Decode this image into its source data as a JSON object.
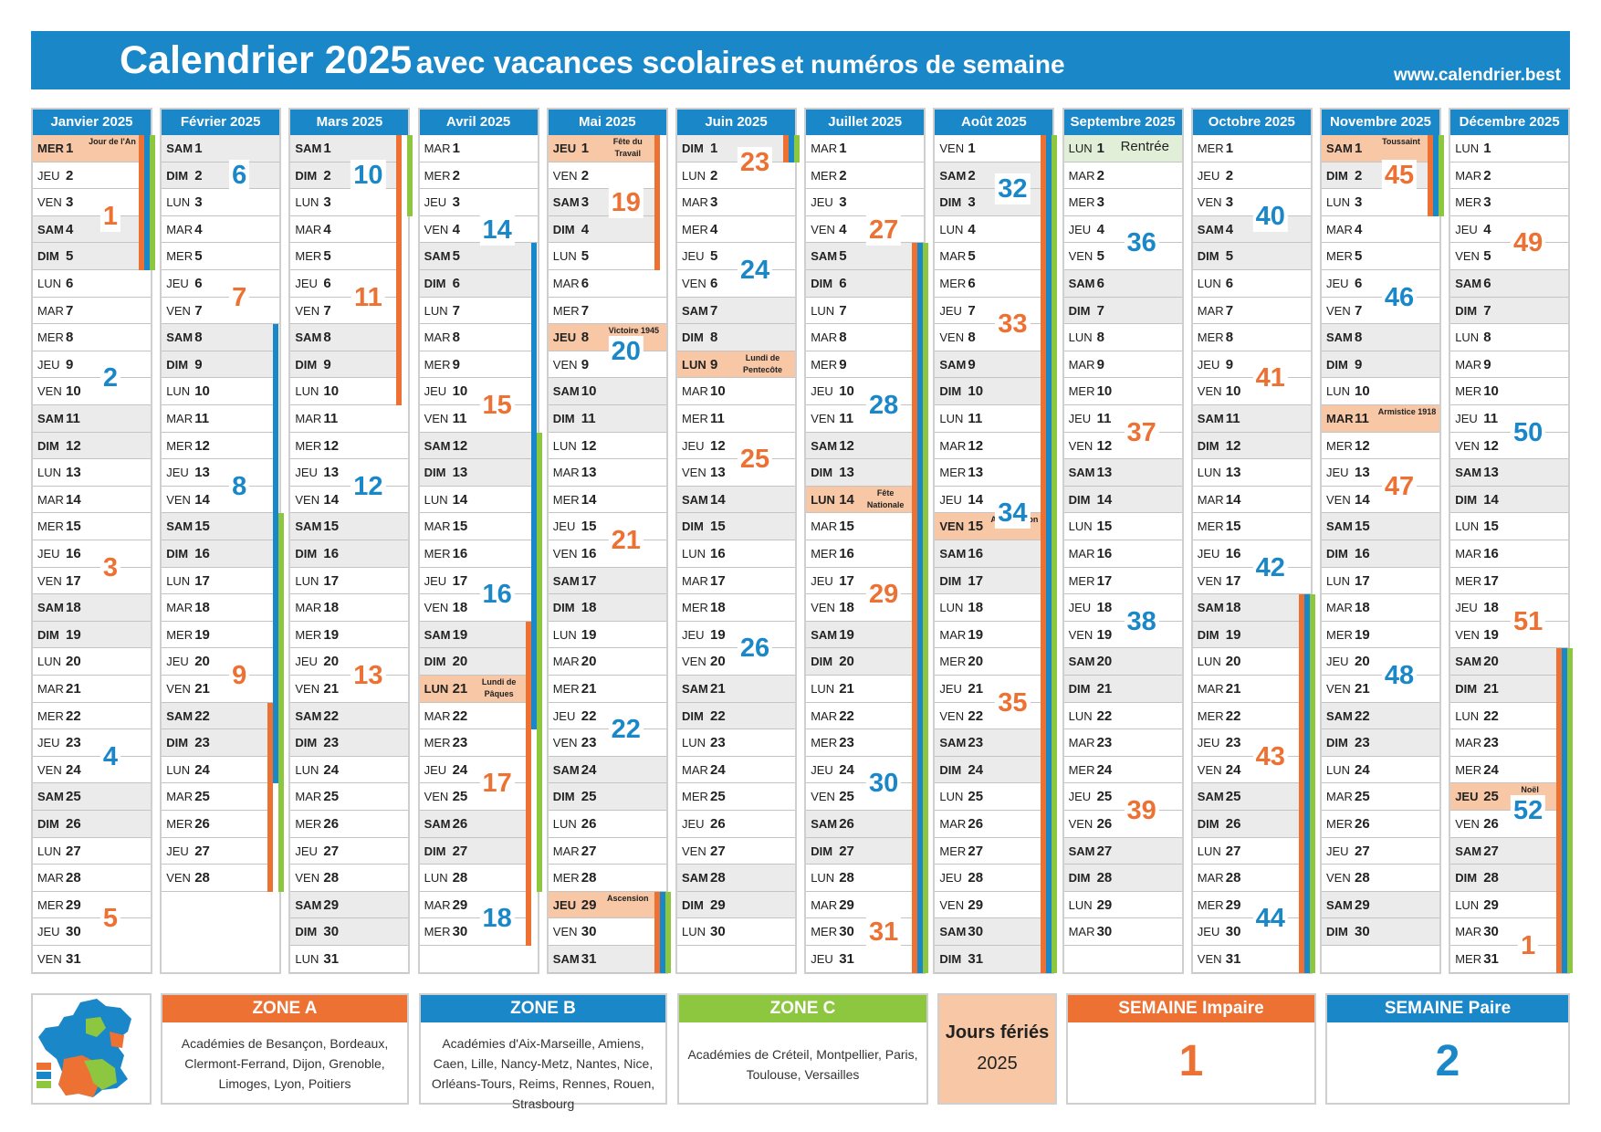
{
  "title": {
    "part1": "Calendrier 2025",
    "part2": "avec vacances scolaires",
    "part3": "et numéros de semaine",
    "website": "www.calendrier.best"
  },
  "colors": {
    "zone_a": "#ed7133",
    "zone_b": "#1a87c9",
    "zone_c": "#8dc63f",
    "holiday": "#f7c7a6",
    "weekend": "#ebebeb",
    "rentree": "#e2efd8"
  },
  "weekday_abbr": [
    "LUN",
    "MAR",
    "MER",
    "JEU",
    "VEN",
    "SAM",
    "DIM"
  ],
  "months": [
    {
      "name": "Janvier 2025",
      "days": 31,
      "start_weekday": 2
    },
    {
      "name": "Février 2025",
      "days": 28,
      "start_weekday": 5
    },
    {
      "name": "Mars 2025",
      "days": 31,
      "start_weekday": 5
    },
    {
      "name": "Avril 2025",
      "days": 30,
      "start_weekday": 1
    },
    {
      "name": "Mai 2025",
      "days": 31,
      "start_weekday": 3
    },
    {
      "name": "Juin 2025",
      "days": 30,
      "start_weekday": 6
    },
    {
      "name": "Juillet 2025",
      "days": 31,
      "start_weekday": 1
    },
    {
      "name": "Août 2025",
      "days": 31,
      "start_weekday": 4
    },
    {
      "name": "Septembre 2025",
      "days": 30,
      "start_weekday": 0
    },
    {
      "name": "Octobre 2025",
      "days": 31,
      "start_weekday": 2
    },
    {
      "name": "Novembre 2025",
      "days": 30,
      "start_weekday": 5
    },
    {
      "name": "Décembre 2025",
      "days": 31,
      "start_weekday": 0
    }
  ],
  "holidays": [
    {
      "month": 1,
      "day": 1,
      "label": "Jour de l'An"
    },
    {
      "month": 4,
      "day": 21,
      "label": "Lundi de Pâques"
    },
    {
      "month": 5,
      "day": 1,
      "label": "Fête du Travail"
    },
    {
      "month": 5,
      "day": 8,
      "label": "Victoire 1945"
    },
    {
      "month": 5,
      "day": 29,
      "label": "Ascension"
    },
    {
      "month": 6,
      "day": 9,
      "label": "Lundi de Pentecôte"
    },
    {
      "month": 7,
      "day": 14,
      "label": "Fête Nationale"
    },
    {
      "month": 8,
      "day": 15,
      "label": "Assomption"
    },
    {
      "month": 11,
      "day": 1,
      "label": "Toussaint"
    },
    {
      "month": 11,
      "day": 11,
      "label": "Armistice 1918"
    },
    {
      "month": 12,
      "day": 25,
      "label": "Noël"
    }
  ],
  "special_days": [
    {
      "month": 9,
      "day": 1,
      "label": "Rentrée"
    }
  ],
  "week_numbers": [
    [
      1,
      2,
      3,
      4,
      5
    ],
    [
      6,
      7,
      8,
      9
    ],
    [
      10,
      11,
      12,
      13
    ],
    [
      14,
      15,
      16,
      17,
      18
    ],
    [
      19,
      20,
      21,
      22
    ],
    [
      23,
      24,
      25,
      26
    ],
    [
      27,
      28,
      29,
      30,
      31
    ],
    [
      32,
      33,
      34,
      35
    ],
    [
      36,
      37,
      38,
      39
    ],
    [
      40,
      41,
      42,
      43,
      44
    ],
    [
      45,
      46,
      47,
      48
    ],
    [
      49,
      50,
      51,
      52,
      1
    ]
  ],
  "vacations": [
    {
      "zone": "a",
      "from": [
        1,
        1
      ],
      "to": [
        1,
        5
      ]
    },
    {
      "zone": "b",
      "from": [
        1,
        1
      ],
      "to": [
        1,
        5
      ]
    },
    {
      "zone": "c",
      "from": [
        1,
        1
      ],
      "to": [
        1,
        5
      ]
    },
    {
      "zone": "b",
      "from": [
        2,
        8
      ],
      "to": [
        2,
        24
      ]
    },
    {
      "zone": "c",
      "from": [
        2,
        15
      ],
      "to": [
        3,
        3
      ]
    },
    {
      "zone": "a",
      "from": [
        2,
        22
      ],
      "to": [
        3,
        10
      ]
    },
    {
      "zone": "b",
      "from": [
        4,
        5
      ],
      "to": [
        4,
        22
      ]
    },
    {
      "zone": "c",
      "from": [
        4,
        12
      ],
      "to": [
        4,
        28
      ]
    },
    {
      "zone": "a",
      "from": [
        4,
        19
      ],
      "to": [
        5,
        5
      ]
    },
    {
      "zone": "a",
      "from": [
        5,
        29
      ],
      "to": [
        6,
        1
      ]
    },
    {
      "zone": "b",
      "from": [
        5,
        29
      ],
      "to": [
        6,
        1
      ]
    },
    {
      "zone": "c",
      "from": [
        5,
        29
      ],
      "to": [
        6,
        1
      ]
    },
    {
      "zone": "a",
      "from": [
        7,
        5
      ],
      "to": [
        8,
        31
      ]
    },
    {
      "zone": "b",
      "from": [
        7,
        5
      ],
      "to": [
        8,
        31
      ]
    },
    {
      "zone": "c",
      "from": [
        7,
        5
      ],
      "to": [
        8,
        31
      ]
    },
    {
      "zone": "a",
      "from": [
        10,
        18
      ],
      "to": [
        11,
        3
      ]
    },
    {
      "zone": "b",
      "from": [
        10,
        18
      ],
      "to": [
        11,
        3
      ]
    },
    {
      "zone": "c",
      "from": [
        10,
        18
      ],
      "to": [
        11,
        3
      ]
    },
    {
      "zone": "a",
      "from": [
        12,
        20
      ],
      "to": [
        12,
        31
      ]
    },
    {
      "zone": "b",
      "from": [
        12,
        20
      ],
      "to": [
        12,
        31
      ]
    },
    {
      "zone": "c",
      "from": [
        12,
        20
      ],
      "to": [
        12,
        31
      ]
    }
  ],
  "legend": {
    "zone_a": {
      "title": "ZONE A",
      "text": "Académies de Besançon, Bordeaux, Clermont-Ferrand, Dijon, Grenoble, Limoges, Lyon, Poitiers"
    },
    "zone_b": {
      "title": "ZONE B",
      "text": "Académies d'Aix-Marseille, Amiens, Caen, Lille, Nancy-Metz, Nantes, Nice, Orléans-Tours, Reims, Rennes, Rouen, Strasbourg"
    },
    "zone_c": {
      "title": "ZONE C",
      "text": "Académies de Créteil, Montpellier, Paris, Toulouse, Versailles"
    },
    "jours_feries": {
      "title": "Jours fériés",
      "year": "2025"
    },
    "semaine_impaire": {
      "title": "SEMAINE Impaire",
      "value": "1"
    },
    "semaine_paire": {
      "title": "SEMAINE Paire",
      "value": "2"
    }
  }
}
